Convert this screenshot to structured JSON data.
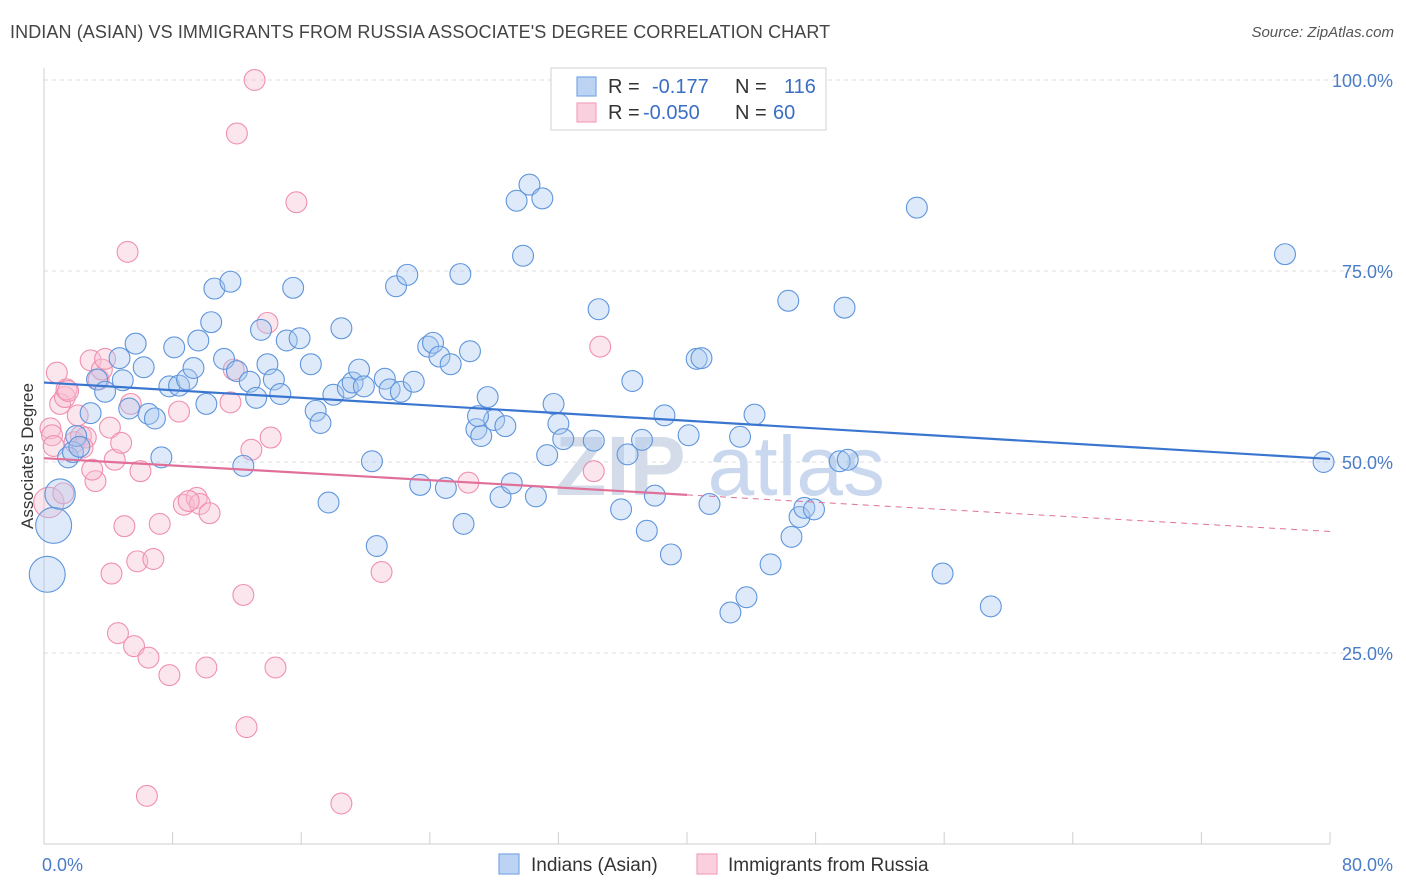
{
  "title": "INDIAN (ASIAN) VS IMMIGRANTS FROM RUSSIA ASSOCIATE'S DEGREE CORRELATION CHART",
  "source": "Source: ZipAtlas.com",
  "watermark": "ZIPatlas",
  "colors": {
    "blue": "#7aa8e6",
    "blue_line": "#3a76d0",
    "pink": "#f4a3bd",
    "pink_line": "#e0709a",
    "tick_text": "#4a7cc7"
  },
  "legend": {
    "rows": [
      {
        "r_label": "R =",
        "r_value": "-0.177",
        "n_label": "N =",
        "n_value": "116"
      },
      {
        "r_label": "R =",
        "r_value": "-0.050",
        "n_label": "N =",
        "n_value": "60"
      }
    ]
  },
  "chart_data": {
    "type": "scatter",
    "title": "INDIAN (ASIAN) VS IMMIGRANTS FROM RUSSIA ASSOCIATE'S DEGREE CORRELATION CHART",
    "xlabel": "",
    "ylabel": "Associate's Degree",
    "xlim": [
      0,
      80
    ],
    "ylim": [
      0,
      100
    ],
    "x_tick_labels": [
      "0.0%",
      "80.0%"
    ],
    "y_ticks": [
      25,
      50,
      75,
      100
    ],
    "y_tick_labels": [
      "25.0%",
      "50.0%",
      "75.0%",
      "100.0%"
    ],
    "grid": true,
    "legend_position": "top-center",
    "series": [
      {
        "name": "Indians (Asian)",
        "color": "#7aa8e6",
        "trend": {
          "x": [
            0,
            80
          ],
          "y": [
            60.4,
            50.4
          ],
          "dashed_to": null
        },
        "points": [
          [
            0.2,
            35.3,
            3
          ],
          [
            0.6,
            41.7,
            3
          ],
          [
            1.0,
            45.8,
            2.4
          ],
          [
            1.5,
            50.6,
            1.6
          ],
          [
            1.8,
            51.3,
            1.6
          ],
          [
            2.0,
            53.4,
            1.6
          ],
          [
            2.2,
            52.0,
            1.6
          ],
          [
            2.9,
            56.4,
            1.6
          ],
          [
            3.3,
            60.8,
            1.6
          ],
          [
            3.8,
            59.2,
            1.6
          ],
          [
            4.7,
            63.6,
            1.6
          ],
          [
            4.9,
            60.7,
            1.6
          ],
          [
            5.3,
            57.0,
            1.6
          ],
          [
            5.7,
            65.5,
            1.6
          ],
          [
            6.2,
            62.4,
            1.6
          ],
          [
            6.5,
            56.3,
            1.6
          ],
          [
            6.9,
            55.7,
            1.6
          ],
          [
            7.3,
            50.6,
            1.6
          ],
          [
            7.8,
            59.9,
            1.6
          ],
          [
            8.1,
            65.0,
            1.6
          ],
          [
            8.4,
            60.0,
            1.6
          ],
          [
            8.9,
            60.8,
            1.6
          ],
          [
            9.3,
            62.3,
            1.6
          ],
          [
            9.6,
            65.9,
            1.6
          ],
          [
            10.1,
            57.6,
            1.6
          ],
          [
            10.4,
            68.3,
            1.6
          ],
          [
            10.6,
            72.7,
            1.6
          ],
          [
            11.2,
            63.5,
            1.6
          ],
          [
            11.6,
            73.6,
            1.6
          ],
          [
            12.0,
            61.9,
            1.6
          ],
          [
            12.4,
            49.5,
            1.6
          ],
          [
            12.8,
            60.5,
            1.6
          ],
          [
            13.2,
            58.4,
            1.6
          ],
          [
            13.5,
            67.3,
            1.6
          ],
          [
            13.9,
            62.8,
            1.6
          ],
          [
            14.3,
            60.8,
            1.6
          ],
          [
            14.7,
            58.9,
            1.6
          ],
          [
            15.1,
            65.9,
            1.6
          ],
          [
            15.5,
            72.8,
            1.6
          ],
          [
            15.9,
            66.2,
            1.6
          ],
          [
            16.6,
            62.8,
            1.6
          ],
          [
            16.9,
            56.7,
            1.6
          ],
          [
            17.2,
            55.1,
            1.6
          ],
          [
            17.7,
            44.7,
            1.6
          ],
          [
            18.0,
            58.8,
            1.6
          ],
          [
            18.5,
            67.5,
            1.6
          ],
          [
            18.9,
            59.7,
            1.6
          ],
          [
            19.2,
            60.4,
            1.6
          ],
          [
            19.6,
            62.1,
            1.6
          ],
          [
            19.9,
            59.9,
            1.6
          ],
          [
            20.4,
            50.1,
            1.6
          ],
          [
            20.7,
            39.0,
            1.6
          ],
          [
            21.2,
            60.9,
            1.6
          ],
          [
            21.5,
            59.5,
            1.6
          ],
          [
            21.9,
            73.0,
            1.6
          ],
          [
            22.2,
            59.2,
            1.6
          ],
          [
            22.6,
            74.5,
            1.6
          ],
          [
            23.0,
            60.5,
            1.6
          ],
          [
            23.4,
            47.0,
            1.6
          ],
          [
            23.9,
            65.1,
            1.6
          ],
          [
            24.2,
            65.6,
            1.6
          ],
          [
            24.6,
            63.8,
            1.6
          ],
          [
            25.0,
            46.6,
            1.6
          ],
          [
            25.3,
            62.8,
            1.6
          ],
          [
            25.9,
            74.6,
            1.6
          ],
          [
            26.1,
            41.9,
            1.6
          ],
          [
            26.5,
            64.5,
            1.6
          ],
          [
            26.9,
            54.3,
            1.6
          ],
          [
            27.2,
            53.4,
            1.6
          ],
          [
            27.6,
            58.5,
            1.6
          ],
          [
            28.0,
            55.5,
            1.6
          ],
          [
            28.4,
            45.4,
            1.6
          ],
          [
            28.7,
            54.7,
            1.6
          ],
          [
            29.1,
            47.2,
            1.6
          ],
          [
            29.4,
            84.2,
            1.6
          ],
          [
            29.8,
            77.0,
            1.6
          ],
          [
            30.2,
            86.3,
            1.6
          ],
          [
            30.6,
            45.5,
            1.6
          ],
          [
            31.0,
            84.5,
            1.6
          ],
          [
            31.3,
            50.9,
            1.6
          ],
          [
            31.7,
            57.6,
            1.6
          ],
          [
            32.0,
            55.0,
            1.6
          ],
          [
            32.3,
            53.0,
            1.6
          ],
          [
            34.2,
            52.8,
            1.6
          ],
          [
            34.5,
            70.0,
            1.6
          ],
          [
            35.9,
            43.8,
            1.6
          ],
          [
            36.3,
            51.0,
            1.6
          ],
          [
            36.6,
            60.6,
            1.6
          ],
          [
            37.2,
            52.9,
            1.6
          ],
          [
            37.5,
            41.0,
            1.6
          ],
          [
            38.0,
            45.6,
            1.6
          ],
          [
            38.6,
            56.1,
            1.6
          ],
          [
            39.0,
            37.9,
            1.6
          ],
          [
            40.1,
            53.5,
            1.6
          ],
          [
            40.6,
            63.5,
            1.6
          ],
          [
            40.9,
            63.6,
            1.6
          ],
          [
            41.4,
            44.5,
            1.6
          ],
          [
            42.7,
            30.3,
            1.6
          ],
          [
            43.3,
            53.3,
            1.6
          ],
          [
            43.7,
            32.3,
            1.6
          ],
          [
            44.2,
            56.2,
            1.6
          ],
          [
            45.2,
            36.6,
            1.6
          ],
          [
            46.3,
            71.1,
            1.6
          ],
          [
            46.5,
            40.2,
            1.6
          ],
          [
            47.0,
            42.8,
            1.6
          ],
          [
            47.3,
            44.0,
            1.6
          ],
          [
            47.9,
            43.8,
            1.6
          ],
          [
            49.5,
            50.1,
            1.6
          ],
          [
            49.8,
            70.2,
            1.6
          ],
          [
            54.3,
            83.3,
            1.6
          ],
          [
            55.9,
            35.4,
            1.6
          ],
          [
            58.9,
            31.1,
            1.6
          ],
          [
            77.2,
            77.2,
            1.6
          ],
          [
            79.6,
            50.0,
            1.6
          ],
          [
            50.0,
            50.3,
            1.6
          ],
          [
            27.0,
            56.0,
            1.6
          ]
        ]
      },
      {
        "name": "Immigrants from Russia",
        "color": "#f4a3bd",
        "trend": {
          "x": [
            0,
            40
          ],
          "y": [
            50.5,
            45.7
          ],
          "dashed_to": [
            80,
            40.9
          ]
        },
        "points": [
          [
            0.3,
            44.7,
            2.4
          ],
          [
            0.4,
            54.4,
            1.6
          ],
          [
            0.5,
            53.5,
            1.6
          ],
          [
            0.6,
            52.1,
            1.6
          ],
          [
            0.8,
            61.7,
            1.6
          ],
          [
            1.0,
            57.6,
            1.6
          ],
          [
            1.3,
            58.5,
            1.6
          ],
          [
            1.4,
            59.5,
            1.6
          ],
          [
            1.5,
            59.3,
            1.6
          ],
          [
            1.9,
            52.6,
            1.6
          ],
          [
            2.1,
            56.1,
            1.6
          ],
          [
            2.3,
            53.4,
            1.6
          ],
          [
            2.6,
            53.2,
            1.6
          ],
          [
            2.9,
            63.3,
            1.6
          ],
          [
            3.2,
            47.5,
            1.6
          ],
          [
            3.4,
            60.8,
            1.6
          ],
          [
            3.6,
            62.1,
            1.6
          ],
          [
            3.8,
            63.5,
            1.6
          ],
          [
            4.1,
            54.5,
            1.6
          ],
          [
            4.2,
            35.4,
            1.6
          ],
          [
            4.4,
            50.3,
            1.6
          ],
          [
            4.6,
            27.6,
            1.6
          ],
          [
            4.8,
            52.5,
            1.6
          ],
          [
            5.0,
            41.6,
            1.6
          ],
          [
            5.2,
            77.5,
            1.6
          ],
          [
            5.4,
            57.6,
            1.6
          ],
          [
            5.6,
            25.9,
            1.6
          ],
          [
            5.8,
            37.0,
            1.6
          ],
          [
            6.0,
            48.8,
            1.6
          ],
          [
            6.4,
            6.3,
            1.6
          ],
          [
            6.5,
            24.4,
            1.6
          ],
          [
            6.8,
            37.3,
            1.6
          ],
          [
            7.2,
            41.9,
            1.6
          ],
          [
            7.8,
            22.1,
            1.6
          ],
          [
            8.4,
            56.6,
            1.6
          ],
          [
            8.7,
            44.4,
            1.6
          ],
          [
            9.5,
            45.3,
            1.6
          ],
          [
            9.7,
            44.5,
            1.6
          ],
          [
            10.1,
            23.1,
            1.6
          ],
          [
            10.3,
            43.3,
            1.6
          ],
          [
            11.6,
            57.8,
            1.6
          ],
          [
            11.8,
            62.1,
            1.6
          ],
          [
            12.0,
            93.0,
            1.6
          ],
          [
            12.4,
            32.6,
            1.6
          ],
          [
            12.6,
            15.3,
            1.6
          ],
          [
            12.9,
            51.6,
            1.6
          ],
          [
            13.1,
            100.0,
            1.6
          ],
          [
            13.9,
            68.2,
            1.6
          ],
          [
            14.1,
            53.2,
            1.6
          ],
          [
            14.4,
            23.1,
            1.6
          ],
          [
            15.7,
            84.0,
            1.6
          ],
          [
            18.5,
            5.3,
            1.6
          ],
          [
            21.0,
            35.6,
            1.6
          ],
          [
            26.4,
            47.3,
            1.6
          ],
          [
            34.2,
            48.8,
            1.6
          ],
          [
            34.6,
            65.1,
            1.6
          ],
          [
            1.2,
            45.9,
            1.6
          ],
          [
            2.4,
            51.9,
            1.6
          ],
          [
            9.0,
            44.9,
            1.6
          ],
          [
            3.0,
            49.0,
            1.6
          ]
        ]
      }
    ]
  }
}
